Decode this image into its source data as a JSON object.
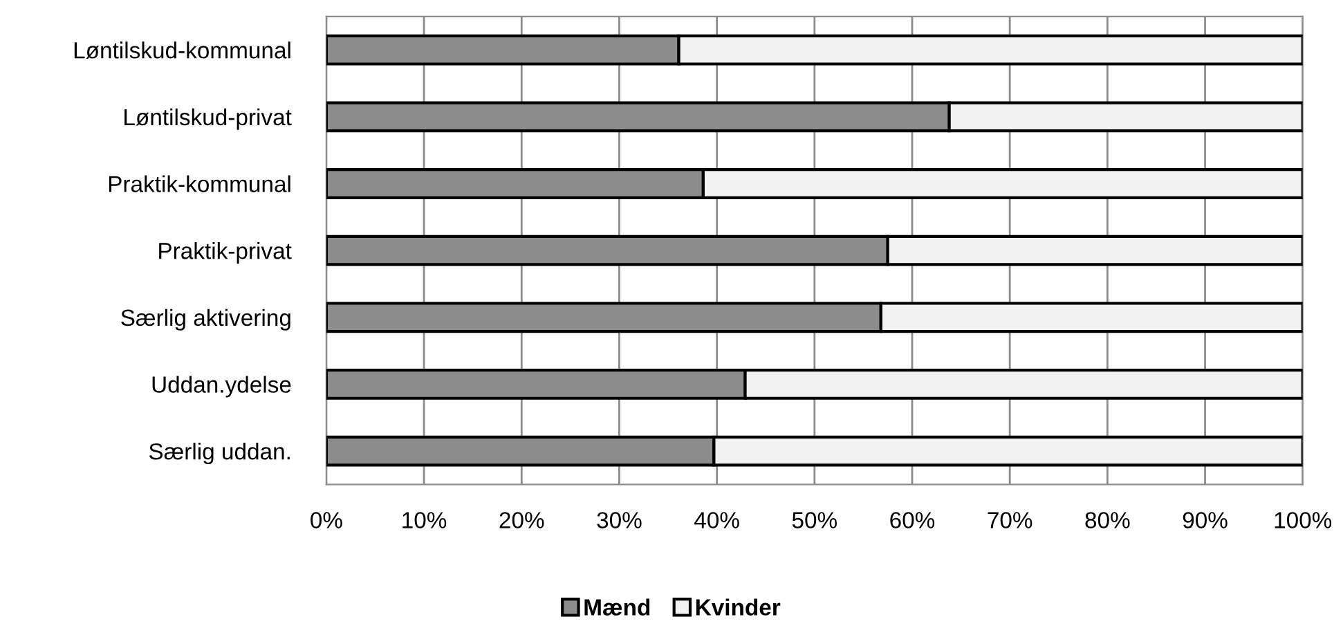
{
  "chart_data": {
    "type": "bar",
    "orientation": "horizontal",
    "stacked": true,
    "categories": [
      "Løntilskud-kommunal",
      "Løntilskud-privat",
      "Praktik-kommunal",
      "Praktik-privat",
      "Særlig aktivering",
      "Uddan.ydelse",
      "Særlig uddan."
    ],
    "series": [
      {
        "name": "Mænd",
        "color": "#8c8c8c",
        "values": [
          36.1,
          63.8,
          38.6,
          57.5,
          56.8,
          42.9,
          39.7
        ]
      },
      {
        "name": "Kvinder",
        "color": "#f2f2f2",
        "values": [
          63.9,
          36.2,
          61.4,
          42.5,
          43.2,
          57.1,
          60.3
        ]
      }
    ],
    "xlim": [
      0,
      100
    ],
    "xticks": [
      {
        "value": 0,
        "label": "0%"
      },
      {
        "value": 10,
        "label": "10%"
      },
      {
        "value": 20,
        "label": "20%"
      },
      {
        "value": 30,
        "label": "30%"
      },
      {
        "value": 40,
        "label": "40%"
      },
      {
        "value": 50,
        "label": "50%"
      },
      {
        "value": 60,
        "label": "60%"
      },
      {
        "value": 70,
        "label": "70%"
      },
      {
        "value": 80,
        "label": "80%"
      },
      {
        "value": 90,
        "label": "90%"
      },
      {
        "value": 100,
        "label": "100%"
      }
    ],
    "grid": "x",
    "legend": "bottom"
  }
}
